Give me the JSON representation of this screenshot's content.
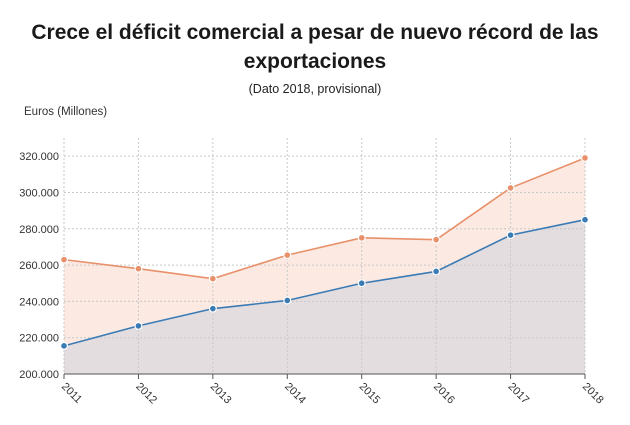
{
  "header": {
    "title_line1": "Crece el déficit comercial a pesar de nuevo récord de las",
    "title_line2": "exportaciones",
    "subtitle": "(Dato 2018, provisional)"
  },
  "chart_data": {
    "type": "area",
    "title": "Crece el déficit comercial a pesar de nuevo récord de las exportaciones",
    "subtitle": "(Dato 2018, provisional)",
    "ylabel": "Euros (Millones)",
    "xlabel": "",
    "categories": [
      "2011",
      "2012",
      "2013",
      "2014",
      "2015",
      "2016",
      "2017",
      "2018"
    ],
    "y_tick_labels": [
      "200.000",
      "220.000",
      "240.000",
      "260.000",
      "280.000",
      "300.000",
      "320.000"
    ],
    "y_ticks": [
      200000,
      220000,
      240000,
      260000,
      280000,
      300000,
      320000
    ],
    "ylim": [
      200000,
      330000
    ],
    "grid": true,
    "legend": "none",
    "series": [
      {
        "values": [
          263000,
          258000,
          252500,
          265500,
          275000,
          274000,
          302500,
          319000
        ],
        "color": "#e8906a",
        "fill": "#fbe9e2"
      },
      {
        "values": [
          215500,
          226500,
          236000,
          240500,
          250000,
          256500,
          276500,
          285000
        ],
        "color": "#3a7bb5",
        "fill": "#e3dde0"
      }
    ]
  }
}
